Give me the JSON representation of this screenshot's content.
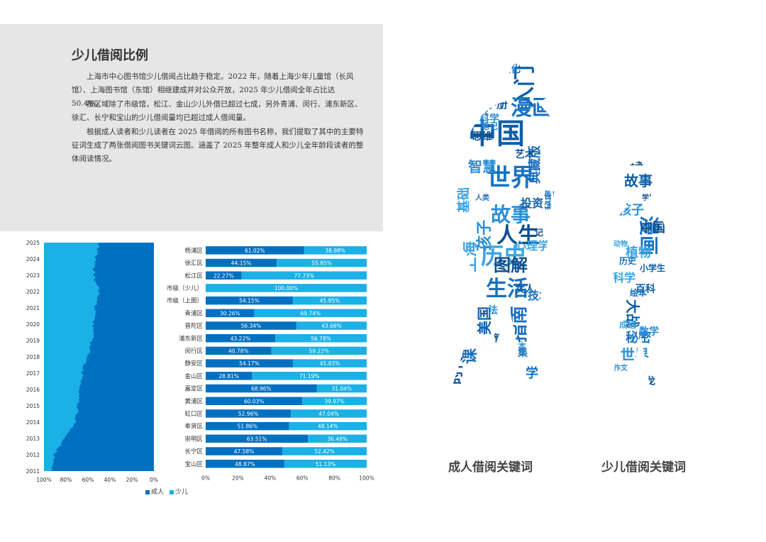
{
  "article": {
    "title": "少儿借阅比例",
    "paragraphs": [
      "上海市中心图书馆少儿借阅占比趋于稳定。2022 年，随着上海少年儿童馆（长风馆）、上海图书馆（东馆）相继建成并对公众开放，2025 年少儿借阅全年占比达 50.4%。",
      "按区域除了市级馆，松江、金山少儿外借已超过七成，另外青浦、闵行、浦东新区、徐汇、长宁和宝山的少儿借阅量均已超过成人借阅量。",
      "根据成人读者和少儿读者在 2025 年借阅的所有图书名称，我们提取了其中的主要特征词生成了两张借阅图书关键词云图。涵盖了 2025 年整年成人和少儿全年龄段读者的整体阅读情况。"
    ]
  },
  "colors": {
    "adult": "#0070c0",
    "child": "#1bb0e6",
    "adult_dark": "#0d5fa8",
    "child_light": "#32b4e8"
  },
  "chart_data": [
    {
      "type": "area",
      "orientation": "horizontal-stacked-percent",
      "years": [
        "2011",
        "2012",
        "2013",
        "2014",
        "2015",
        "2016",
        "2017",
        "2018",
        "2019",
        "2020",
        "2021",
        "2022",
        "2023",
        "2024",
        "2025"
      ],
      "child_share": [
        0.07,
        0.1,
        0.18,
        0.28,
        0.31,
        0.33,
        0.35,
        0.39,
        0.44,
        0.45,
        0.46,
        0.5,
        0.45,
        0.47,
        0.5
      ],
      "xticks": [
        "100%",
        "80%",
        "60%",
        "40%",
        "20%",
        "0%"
      ],
      "legend": [
        "成人",
        "少儿"
      ]
    },
    {
      "type": "bar",
      "orientation": "horizontal-stacked-percent",
      "categories": [
        "杨浦区",
        "徐汇区",
        "松江区",
        "市级（少儿）",
        "市级（上图）",
        "青浦区",
        "普陀区",
        "浦东新区",
        "闵行区",
        "静安区",
        "金山区",
        "嘉定区",
        "黄浦区",
        "虹口区",
        "奉贤区",
        "崇明区",
        "长宁区",
        "宝山区"
      ],
      "series": [
        {
          "name": "成人",
          "values": [
            61.02,
            44.15,
            22.27,
            0,
            54.15,
            30.26,
            56.34,
            43.22,
            40.78,
            54.17,
            28.81,
            68.96,
            60.03,
            52.96,
            51.86,
            63.51,
            47.58,
            48.87
          ]
        },
        {
          "name": "少儿",
          "values": [
            38.98,
            55.85,
            77.73,
            100.0,
            45.85,
            69.74,
            43.66,
            56.78,
            59.22,
            45.83,
            71.19,
            31.04,
            39.97,
            47.04,
            48.14,
            36.49,
            52.42,
            51.13
          ]
        }
      ],
      "labels": [
        [
          "61.02%",
          "38.98%"
        ],
        [
          "44.15%",
          "55.85%"
        ],
        [
          "22.27%",
          "77.73%"
        ],
        [
          "",
          "100.00%"
        ],
        [
          "54.15%",
          "45.85%"
        ],
        [
          "30.26%",
          "69.74%"
        ],
        [
          "56.34%",
          "43.66%"
        ],
        [
          "43.22%",
          "56.78%"
        ],
        [
          "40.78%",
          "59.22%"
        ],
        [
          "54.17%",
          "45.83%"
        ],
        [
          "28.81%",
          "71.19%"
        ],
        [
          "68.96%",
          "31.04%"
        ],
        [
          "60.03%",
          "39.97%"
        ],
        [
          "52.96%",
          "47.04%"
        ],
        [
          "51.86%",
          "48.14%"
        ],
        [
          "63.51%",
          "36.49%"
        ],
        [
          "47.58%",
          "52.42%"
        ],
        [
          "48.87%",
          "51.13%"
        ]
      ],
      "xticks": [
        "0%",
        "20%",
        "40%",
        "60%",
        "80%",
        "100%"
      ]
    }
  ],
  "wordcloud": {
    "adult_label": "成人借阅关键词",
    "child_label": "少儿借阅关键词",
    "adult_words": [
      "中国",
      "世界",
      "故事",
      "人生",
      "历史",
      "生活",
      "入门",
      "漫画",
      "孩子",
      "图解",
      "上海",
      "指南",
      "手册",
      "文化",
      "智慧",
      "时代",
      "经典",
      "典藏版",
      "投资",
      "技术",
      "科学",
      "艺术",
      "心理学",
      "课",
      "史",
      "学",
      "笔记",
      "思维",
      "设计",
      "全集",
      "美国",
      "小说",
      "日本",
      "管理",
      "基础",
      "人类",
      "女人",
      "秘密",
      "法",
      "记"
    ],
    "child_words": [
      "故事",
      "漫画",
      "孩子",
      "中国",
      "植物",
      "大战",
      "秘密",
      "世界",
      "恐龙",
      "科学",
      "百科",
      "历史",
      "数学",
      "宝宝",
      "动物",
      "小学生",
      "绘本",
      "作文",
      "学校",
      "成语"
    ]
  }
}
